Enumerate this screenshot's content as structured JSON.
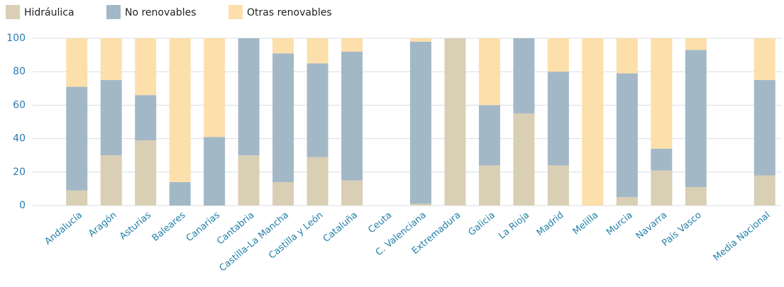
{
  "chart_data": {
    "type": "stacked_bar",
    "categories": [
      "Andalucía",
      "Aragón",
      "Asturias",
      "Baleares",
      "Canarias",
      "Cantabria",
      "Castilla-La Mancha",
      "Castilla y León",
      "Cataluña",
      "Ceuta",
      "C. Valenciana",
      "Extremadura",
      "Galicia",
      "La Rioja",
      "Madrid",
      "Melilla",
      "Murcia",
      "Navarra",
      "País Vasco",
      null,
      "Media  Nacional"
    ],
    "series": [
      {
        "name": "Hidráulica",
        "color": "#d9cfb4",
        "values": [
          9,
          30,
          39,
          0,
          0,
          30,
          14,
          29,
          15,
          null,
          1,
          100,
          24,
          55,
          24,
          0,
          5,
          21,
          11,
          null,
          18
        ]
      },
      {
        "name": "No renovables",
        "color": "#a3b8c6",
        "values": [
          62,
          45,
          27,
          14,
          41,
          70,
          77,
          56,
          77,
          null,
          97,
          0,
          36,
          45,
          56,
          0,
          74,
          13,
          82,
          null,
          57
        ]
      },
      {
        "name": "Otras renovables",
        "color": "#fcdfab",
        "values": [
          29,
          25,
          34,
          86,
          59,
          0,
          9,
          15,
          8,
          null,
          2,
          0,
          40,
          0,
          20,
          100,
          21,
          66,
          7,
          null,
          25
        ]
      }
    ],
    "ylim": [
      0,
      100
    ],
    "yticks": [
      0,
      20,
      40,
      60,
      80,
      100
    ],
    "grid": true,
    "legend": "top-left"
  }
}
